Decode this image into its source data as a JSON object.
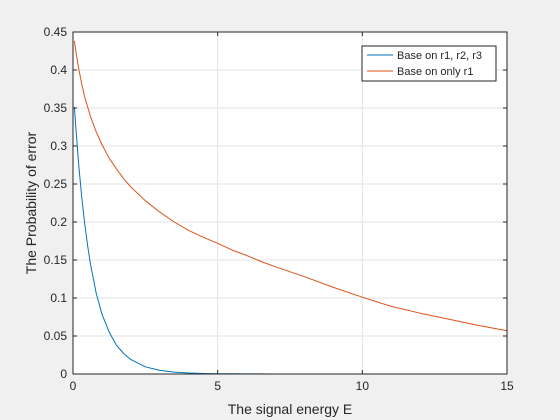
{
  "chart_data": {
    "type": "line",
    "title": "",
    "xlabel": "The signal energy E",
    "ylabel": "The Probability of error",
    "xlim": [
      0,
      15
    ],
    "ylim": [
      0,
      0.45
    ],
    "grid": true,
    "legend_position": "top-right",
    "x_ticks": [
      "0",
      "5",
      "10",
      "15"
    ],
    "y_ticks": [
      "0",
      "0.05",
      "0.1",
      "0.15",
      "0.2",
      "0.25",
      "0.3",
      "0.35",
      "0.4",
      "0.45"
    ],
    "x": [
      0.05,
      0.1,
      0.2,
      0.3,
      0.4,
      0.5,
      0.6,
      0.8,
      1.0,
      1.25,
      1.5,
      1.75,
      2.0,
      2.5,
      3.0,
      3.5,
      4.0,
      4.5,
      5.0,
      5.5,
      6.0,
      6.5,
      7.0,
      8.0,
      9.0,
      10.0,
      11.0,
      12.0,
      13.0,
      14.0,
      15.0
    ],
    "series": [
      {
        "name": "Base on r1, r2, r3",
        "color": "#0072bd",
        "values": [
          0.351,
          0.323,
          0.274,
          0.233,
          0.199,
          0.17,
          0.145,
          0.107,
          0.079,
          0.055,
          0.038,
          0.027,
          0.019,
          0.0095,
          0.0048,
          0.0025,
          0.0013,
          0.0007,
          0.0004,
          0.0002,
          0.0001,
          0.0001,
          0.0,
          0.0,
          0.0,
          0.0,
          0.0,
          0.0,
          0.0,
          0.0,
          0.0
        ]
      },
      {
        "name": "Base on only r1",
        "color": "#d95319",
        "values": [
          0.438,
          0.424,
          0.401,
          0.382,
          0.365,
          0.352,
          0.339,
          0.319,
          0.302,
          0.284,
          0.27,
          0.257,
          0.246,
          0.228,
          0.213,
          0.2,
          0.189,
          0.18,
          0.172,
          0.163,
          0.156,
          0.148,
          0.141,
          0.128,
          0.114,
          0.101,
          0.089,
          0.08,
          0.072,
          0.064,
          0.057
        ]
      }
    ]
  }
}
